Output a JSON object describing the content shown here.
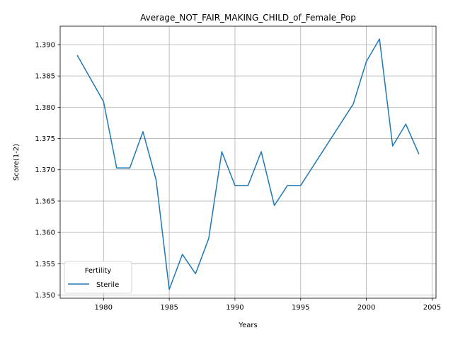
{
  "chart_data": {
    "type": "line",
    "title": "Average_NOT_FAIR_MAKING_CHILD_of_Female_Pop",
    "xlabel": "Years",
    "ylabel": "Score(1-2)",
    "xlim": [
      1976.7,
      2005.3
    ],
    "ylim": [
      1.34949,
      1.39294
    ],
    "xticks": [
      1980,
      1985,
      1990,
      1995,
      2000,
      2005
    ],
    "xtick_labels": [
      "1980",
      "1985",
      "1990",
      "1995",
      "2000",
      "2005"
    ],
    "yticks": [
      1.35,
      1.355,
      1.36,
      1.365,
      1.37,
      1.375,
      1.38,
      1.385,
      1.39
    ],
    "ytick_labels": [
      "1.350",
      "1.355",
      "1.360",
      "1.365",
      "1.370",
      "1.375",
      "1.380",
      "1.385",
      "1.390"
    ],
    "grid": true,
    "legend": {
      "title": "Fertility",
      "placement": "lower-left"
    },
    "series": [
      {
        "name": "Sterile",
        "color": "#1f77b4",
        "x": [
          1978,
          1980,
          1981,
          1982,
          1983,
          1984,
          1985,
          1986,
          1987,
          1988,
          1989,
          1990,
          1991,
          1992,
          1993,
          1994,
          1995,
          1999,
          2000,
          2001,
          2002,
          2003,
          2004
        ],
        "y": [
          1.3883,
          1.3809,
          1.3703,
          1.3703,
          1.3761,
          1.3684,
          1.3509,
          1.3565,
          1.3534,
          1.359,
          1.3729,
          1.3675,
          1.3675,
          1.3729,
          1.3643,
          1.3675,
          1.3675,
          1.3805,
          1.3873,
          1.3909,
          1.3738,
          1.3773,
          1.3725
        ]
      }
    ]
  }
}
